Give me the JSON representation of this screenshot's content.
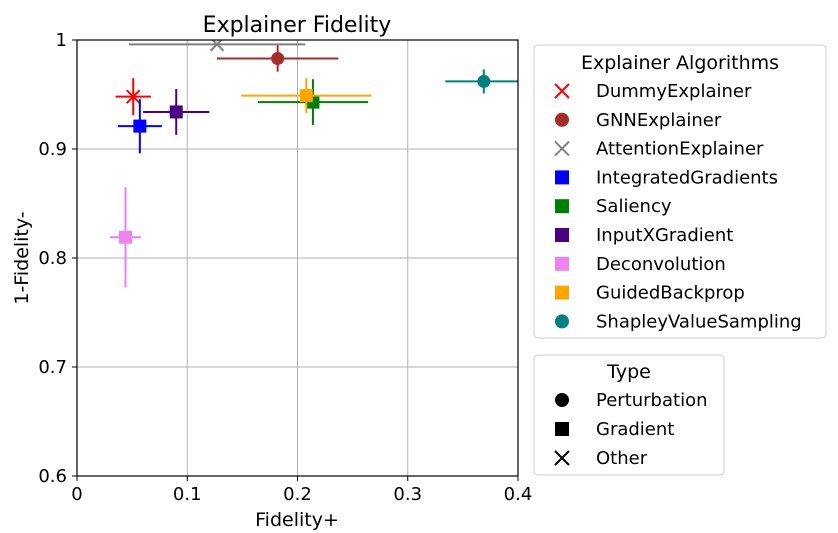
{
  "chart_data": {
    "type": "scatter",
    "title": "Explainer Fidelity",
    "xlabel": "Fidelity+",
    "ylabel": "1-Fidelity-",
    "xlim": [
      0,
      0.4
    ],
    "ylim": [
      0.6,
      1.0
    ],
    "xticks": [
      0,
      0.1,
      0.2,
      0.3,
      0.4
    ],
    "xtick_labels": [
      "0",
      "0.1",
      "0.2",
      "0.3",
      "0.4"
    ],
    "yticks": [
      0.6,
      0.7,
      0.8,
      0.9,
      1.0
    ],
    "ytick_labels": [
      "0.6",
      "0.7",
      "0.8",
      "0.9",
      "1"
    ],
    "grid": true,
    "legend_algorithms": {
      "title": "Explainer Algorithms",
      "placement": "right-top, outside plot",
      "entries": [
        {
          "name": "DummyExplainer",
          "color": "#ff0000",
          "marker": "x"
        },
        {
          "name": "GNNExplainer",
          "color": "#a52a2a",
          "marker": "circle"
        },
        {
          "name": "AttentionExplainer",
          "color": "#808080",
          "marker": "x"
        },
        {
          "name": "IntegratedGradients",
          "color": "#0000ff",
          "marker": "square"
        },
        {
          "name": "Saliency",
          "color": "#008000",
          "marker": "square"
        },
        {
          "name": "InputXGradient",
          "color": "#4b0082",
          "marker": "square"
        },
        {
          "name": "Deconvolution",
          "color": "#ee82ee",
          "marker": "square"
        },
        {
          "name": "GuidedBackprop",
          "color": "#ffa500",
          "marker": "square"
        },
        {
          "name": "ShapleyValueSampling",
          "color": "#008080",
          "marker": "circle"
        }
      ]
    },
    "legend_type": {
      "title": "Type",
      "placement": "right, below first legend",
      "entries": [
        {
          "name": "Perturbation",
          "marker": "circle"
        },
        {
          "name": "Gradient",
          "marker": "square"
        },
        {
          "name": "Other",
          "marker": "x"
        }
      ]
    },
    "points": [
      {
        "name": "DummyExplainer",
        "x": 0.051,
        "y": 0.948,
        "xerr": 0.016,
        "yerr": 0.017,
        "color": "#ff0000",
        "marker": "x"
      },
      {
        "name": "GNNExplainer",
        "x": 0.182,
        "y": 0.983,
        "xerr": 0.055,
        "yerr": 0.012,
        "color": "#a52a2a",
        "marker": "circle"
      },
      {
        "name": "AttentionExplainer",
        "x": 0.127,
        "y": 0.996,
        "xerr": 0.08,
        "yerr": 0.0,
        "color": "#808080",
        "marker": "x"
      },
      {
        "name": "IntegratedGradients",
        "x": 0.057,
        "y": 0.921,
        "xerr": 0.02,
        "yerr": 0.025,
        "color": "#0000ff",
        "marker": "square"
      },
      {
        "name": "Saliency",
        "x": 0.214,
        "y": 0.943,
        "xerr": 0.05,
        "yerr": 0.021,
        "color": "#008000",
        "marker": "square"
      },
      {
        "name": "InputXGradient",
        "x": 0.09,
        "y": 0.934,
        "xerr": 0.03,
        "yerr": 0.021,
        "color": "#4b0082",
        "marker": "square"
      },
      {
        "name": "Deconvolution",
        "x": 0.044,
        "y": 0.819,
        "xerr": 0.014,
        "yerr": 0.046,
        "color": "#ee82ee",
        "marker": "square"
      },
      {
        "name": "GuidedBackprop",
        "x": 0.208,
        "y": 0.949,
        "xerr": 0.059,
        "yerr": 0.016,
        "color": "#ffa500",
        "marker": "square"
      },
      {
        "name": "ShapleyValueSampling",
        "x": 0.369,
        "y": 0.962,
        "xerr": 0.035,
        "yerr": 0.011,
        "color": "#008080",
        "marker": "circle"
      }
    ]
  }
}
